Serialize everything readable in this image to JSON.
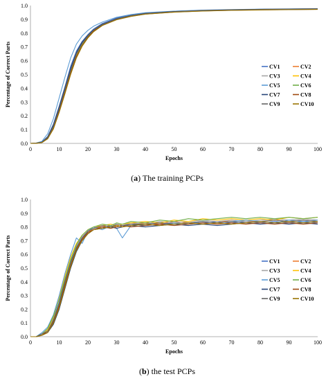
{
  "chart_data": [
    {
      "type": "line",
      "caption": {
        "prefix": "(",
        "letter": "a",
        "suffix": ") The training PCPs"
      },
      "xlabel": "Epochs",
      "ylabel": "Percentage of Correct Parts",
      "xlim": [
        0,
        100
      ],
      "ylim": [
        0,
        1
      ],
      "xticks": [
        "0",
        "10",
        "20",
        "30",
        "40",
        "50",
        "60",
        "70",
        "80",
        "90",
        "100"
      ],
      "yticks": [
        "0.0",
        "0.1",
        "0.2",
        "0.3",
        "0.4",
        "0.5",
        "0.6",
        "0.7",
        "0.8",
        "0.9",
        "1.0"
      ],
      "legend_position": "right",
      "x": [
        0,
        2,
        4,
        6,
        8,
        10,
        12,
        14,
        16,
        18,
        20,
        22,
        25,
        30,
        35,
        40,
        50,
        60,
        70,
        80,
        90,
        100
      ],
      "series": [
        {
          "name": "CV1",
          "color": "#4472C4",
          "values": [
            0.0,
            0.002,
            0.01,
            0.05,
            0.14,
            0.27,
            0.41,
            0.56,
            0.67,
            0.74,
            0.79,
            0.83,
            0.87,
            0.91,
            0.93,
            0.945,
            0.958,
            0.966,
            0.97,
            0.973,
            0.975,
            0.977
          ]
        },
        {
          "name": "CV2",
          "color": "#ED7D31",
          "values": [
            0.0,
            0.001,
            0.007,
            0.04,
            0.12,
            0.24,
            0.38,
            0.52,
            0.64,
            0.72,
            0.78,
            0.82,
            0.86,
            0.9,
            0.925,
            0.94,
            0.955,
            0.963,
            0.968,
            0.971,
            0.973,
            0.975
          ]
        },
        {
          "name": "CV3",
          "color": "#A5A5A5",
          "values": [
            0.0,
            0.001,
            0.008,
            0.045,
            0.13,
            0.26,
            0.4,
            0.54,
            0.66,
            0.73,
            0.785,
            0.825,
            0.865,
            0.905,
            0.928,
            0.942,
            0.956,
            0.964,
            0.969,
            0.972,
            0.974,
            0.976
          ]
        },
        {
          "name": "CV4",
          "color": "#FFC000",
          "values": [
            0.0,
            0.001,
            0.006,
            0.035,
            0.11,
            0.23,
            0.37,
            0.51,
            0.63,
            0.71,
            0.77,
            0.815,
            0.858,
            0.9,
            0.924,
            0.94,
            0.954,
            0.962,
            0.967,
            0.97,
            0.972,
            0.974
          ]
        },
        {
          "name": "CV5",
          "color": "#5B9BD5",
          "values": [
            0.0,
            0.003,
            0.015,
            0.07,
            0.18,
            0.33,
            0.48,
            0.62,
            0.72,
            0.78,
            0.82,
            0.85,
            0.88,
            0.915,
            0.935,
            0.948,
            0.96,
            0.967,
            0.971,
            0.974,
            0.976,
            0.978
          ]
        },
        {
          "name": "CV6",
          "color": "#70AD47",
          "values": [
            0.0,
            0.001,
            0.007,
            0.04,
            0.12,
            0.245,
            0.385,
            0.525,
            0.645,
            0.72,
            0.775,
            0.82,
            0.86,
            0.902,
            0.926,
            0.941,
            0.955,
            0.963,
            0.968,
            0.971,
            0.973,
            0.975
          ]
        },
        {
          "name": "CV7",
          "color": "#264478",
          "values": [
            0.0,
            0.002,
            0.009,
            0.048,
            0.135,
            0.265,
            0.405,
            0.545,
            0.66,
            0.735,
            0.785,
            0.825,
            0.865,
            0.905,
            0.928,
            0.943,
            0.957,
            0.965,
            0.97,
            0.973,
            0.975,
            0.977
          ]
        },
        {
          "name": "CV8",
          "color": "#9E480E",
          "values": [
            0.0,
            0.001,
            0.006,
            0.035,
            0.11,
            0.235,
            0.37,
            0.51,
            0.63,
            0.71,
            0.77,
            0.815,
            0.857,
            0.898,
            0.922,
            0.938,
            0.953,
            0.961,
            0.966,
            0.969,
            0.971,
            0.973
          ]
        },
        {
          "name": "CV9",
          "color": "#636363",
          "values": [
            0.0,
            0.001,
            0.008,
            0.042,
            0.125,
            0.25,
            0.39,
            0.53,
            0.65,
            0.725,
            0.78,
            0.822,
            0.862,
            0.903,
            0.927,
            0.942,
            0.956,
            0.964,
            0.969,
            0.972,
            0.974,
            0.976
          ]
        },
        {
          "name": "CV10",
          "color": "#997300",
          "values": [
            0.0,
            0.001,
            0.006,
            0.033,
            0.105,
            0.225,
            0.36,
            0.5,
            0.62,
            0.705,
            0.765,
            0.81,
            0.855,
            0.897,
            0.921,
            0.937,
            0.952,
            0.96,
            0.965,
            0.968,
            0.97,
            0.972
          ]
        }
      ]
    },
    {
      "type": "line",
      "caption": {
        "prefix": "(",
        "letter": "b",
        "suffix": ") the test PCPs"
      },
      "xlabel": "Epochs",
      "ylabel": "Percentage of Correct Parts",
      "xlim": [
        0,
        100
      ],
      "ylim": [
        0,
        1
      ],
      "xticks": [
        "0",
        "10",
        "20",
        "30",
        "40",
        "50",
        "60",
        "70",
        "80",
        "90",
        "100"
      ],
      "yticks": [
        "0.0",
        "0.1",
        "0.2",
        "0.3",
        "0.4",
        "0.5",
        "0.6",
        "0.7",
        "0.8",
        "0.9",
        "1.0"
      ],
      "legend_position": "right",
      "x": [
        0,
        2,
        4,
        6,
        8,
        10,
        12,
        14,
        16,
        18,
        20,
        22,
        25,
        28,
        30,
        32,
        35,
        40,
        45,
        50,
        55,
        60,
        65,
        70,
        75,
        80,
        85,
        90,
        95,
        100
      ],
      "series": [
        {
          "name": "CV1",
          "color": "#4472C4",
          "values": [
            0.0,
            0.0,
            0.02,
            0.05,
            0.13,
            0.25,
            0.41,
            0.55,
            0.65,
            0.72,
            0.76,
            0.78,
            0.8,
            0.79,
            0.81,
            0.8,
            0.82,
            0.81,
            0.82,
            0.83,
            0.82,
            0.83,
            0.84,
            0.83,
            0.84,
            0.83,
            0.84,
            0.83,
            0.84,
            0.83
          ]
        },
        {
          "name": "CV2",
          "color": "#ED7D31",
          "values": [
            0.0,
            0.0,
            0.01,
            0.04,
            0.1,
            0.22,
            0.37,
            0.52,
            0.64,
            0.71,
            0.76,
            0.79,
            0.8,
            0.81,
            0.8,
            0.81,
            0.82,
            0.83,
            0.82,
            0.84,
            0.83,
            0.84,
            0.83,
            0.85,
            0.84,
            0.84,
            0.85,
            0.84,
            0.85,
            0.84
          ]
        },
        {
          "name": "CV3",
          "color": "#A5A5A5",
          "values": [
            0.0,
            0.0,
            0.02,
            0.05,
            0.12,
            0.24,
            0.39,
            0.53,
            0.66,
            0.73,
            0.77,
            0.79,
            0.81,
            0.8,
            0.82,
            0.81,
            0.83,
            0.82,
            0.84,
            0.83,
            0.84,
            0.85,
            0.84,
            0.85,
            0.84,
            0.85,
            0.86,
            0.85,
            0.86,
            0.85
          ]
        },
        {
          "name": "CV4",
          "color": "#FFC000",
          "values": [
            0.0,
            0.0,
            0.01,
            0.05,
            0.14,
            0.28,
            0.44,
            0.58,
            0.68,
            0.74,
            0.78,
            0.8,
            0.81,
            0.82,
            0.81,
            0.82,
            0.83,
            0.84,
            0.83,
            0.85,
            0.84,
            0.86,
            0.85,
            0.86,
            0.85,
            0.86,
            0.85,
            0.87,
            0.86,
            0.87
          ]
        },
        {
          "name": "CV5",
          "color": "#5B9BD5",
          "values": [
            0.0,
            0.0,
            0.03,
            0.07,
            0.16,
            0.3,
            0.46,
            0.6,
            0.72,
            0.68,
            0.77,
            0.8,
            0.78,
            0.81,
            0.79,
            0.72,
            0.81,
            0.82,
            0.81,
            0.83,
            0.82,
            0.84,
            0.83,
            0.84,
            0.85,
            0.84,
            0.83,
            0.85,
            0.84,
            0.85
          ]
        },
        {
          "name": "CV6",
          "color": "#70AD47",
          "values": [
            0.0,
            0.0,
            0.02,
            0.06,
            0.15,
            0.27,
            0.42,
            0.56,
            0.67,
            0.74,
            0.78,
            0.8,
            0.82,
            0.81,
            0.83,
            0.82,
            0.84,
            0.83,
            0.85,
            0.84,
            0.86,
            0.85,
            0.86,
            0.87,
            0.86,
            0.87,
            0.86,
            0.87,
            0.86,
            0.87
          ]
        },
        {
          "name": "CV7",
          "color": "#264478",
          "values": [
            0.0,
            0.0,
            0.01,
            0.03,
            0.09,
            0.2,
            0.35,
            0.5,
            0.62,
            0.7,
            0.75,
            0.78,
            0.79,
            0.8,
            0.79,
            0.8,
            0.81,
            0.8,
            0.81,
            0.82,
            0.81,
            0.82,
            0.81,
            0.82,
            0.83,
            0.82,
            0.83,
            0.82,
            0.83,
            0.82
          ]
        },
        {
          "name": "CV8",
          "color": "#9E480E",
          "values": [
            0.0,
            0.0,
            0.01,
            0.04,
            0.11,
            0.23,
            0.38,
            0.52,
            0.64,
            0.71,
            0.76,
            0.78,
            0.8,
            0.79,
            0.8,
            0.81,
            0.8,
            0.81,
            0.82,
            0.81,
            0.82,
            0.83,
            0.82,
            0.83,
            0.82,
            0.83,
            0.82,
            0.83,
            0.82,
            0.83
          ]
        },
        {
          "name": "CV9",
          "color": "#636363",
          "values": [
            0.0,
            0.0,
            0.02,
            0.04,
            0.12,
            0.24,
            0.4,
            0.54,
            0.65,
            0.72,
            0.77,
            0.79,
            0.81,
            0.8,
            0.82,
            0.81,
            0.82,
            0.82,
            0.83,
            0.82,
            0.83,
            0.84,
            0.83,
            0.84,
            0.83,
            0.84,
            0.85,
            0.84,
            0.85,
            0.84
          ]
        },
        {
          "name": "CV10",
          "color": "#997300",
          "values": [
            0.0,
            0.0,
            0.01,
            0.03,
            0.1,
            0.21,
            0.36,
            0.51,
            0.63,
            0.7,
            0.75,
            0.78,
            0.79,
            0.8,
            0.81,
            0.8,
            0.81,
            0.82,
            0.81,
            0.82,
            0.83,
            0.82,
            0.83,
            0.82,
            0.83,
            0.84,
            0.83,
            0.84,
            0.83,
            0.84
          ]
        }
      ]
    }
  ]
}
